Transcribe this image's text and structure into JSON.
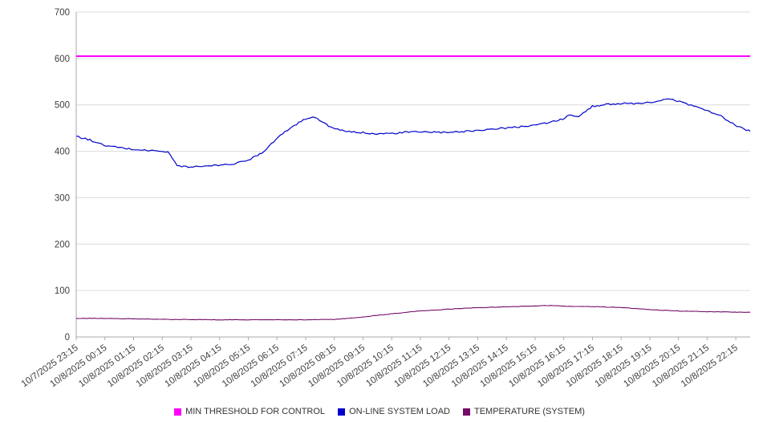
{
  "chart_data": {
    "type": "line",
    "title": "",
    "xlabel": "",
    "ylabel": "",
    "ylim": [
      0,
      700
    ],
    "ytick_interval": 100,
    "grid": "horizontal",
    "legend_position": "bottom",
    "x_span_hours": 23.5,
    "x_tick_labels": [
      "10/7/2025 23:15",
      "10/8/2025 00:15",
      "10/8/2025 01:15",
      "10/8/2025 02:15",
      "10/8/2025 03:15",
      "10/8/2025 04:15",
      "10/8/2025 05:15",
      "10/8/2025 06:15",
      "10/8/2025 07:15",
      "10/8/2025 08:15",
      "10/8/2025 09:15",
      "10/8/2025 10:15",
      "10/8/2025 11:15",
      "10/8/2025 12:15",
      "10/8/2025 13:15",
      "10/8/2025 14:15",
      "10/8/2025 15:15",
      "10/8/2025 16:15",
      "10/8/2025 17:15",
      "10/8/2025 18:15",
      "10/8/2025 19:15",
      "10/8/2025 20:15",
      "10/8/2025 21:15",
      "10/8/2025 22:15"
    ],
    "series": [
      {
        "name": "MIN THRESHOLD FOR CONTROL",
        "color": "#ff00ff",
        "width": 2,
        "jitter": 0,
        "x": [
          0,
          23.5
        ],
        "values": [
          605,
          605
        ]
      },
      {
        "name": "ON-LINE SYSTEM LOAD",
        "color": "#0000cc",
        "width": 1.2,
        "jitter": 1.8,
        "x": [
          0,
          0.5,
          1,
          1.5,
          2,
          2.5,
          3,
          3.25,
          3.5,
          4,
          4.5,
          5,
          5.5,
          6,
          6.5,
          7,
          7.5,
          8,
          8.25,
          8.5,
          9,
          9.5,
          10,
          10.5,
          11,
          11.5,
          12,
          12.5,
          13,
          13.5,
          14,
          14.5,
          15,
          15.5,
          16,
          16.5,
          17,
          17.25,
          17.5,
          18,
          18.5,
          19,
          19.5,
          20,
          20.5,
          20.75,
          21,
          21.5,
          22,
          22.5,
          23,
          23.5
        ],
        "values": [
          432,
          424,
          412,
          408,
          404,
          402,
          400,
          397,
          369,
          366,
          368,
          370,
          373,
          381,
          398,
          428,
          452,
          470,
          475,
          466,
          448,
          442,
          440,
          438,
          438,
          441,
          442,
          441,
          440,
          443,
          445,
          448,
          450,
          453,
          457,
          462,
          470,
          480,
          473,
          497,
          501,
          503,
          502,
          505,
          511,
          512,
          508,
          498,
          488,
          475,
          455,
          443
        ]
      },
      {
        "name": "TEMPERATURE (SYSTEM)",
        "color": "#740b68",
        "width": 1.1,
        "jitter": 0.5,
        "x": [
          0,
          1,
          2,
          3,
          4,
          5,
          6,
          7,
          8,
          9,
          9.5,
          10,
          10.5,
          11,
          11.5,
          12,
          12.5,
          13,
          13.5,
          14,
          15,
          15.5,
          16,
          16.5,
          17,
          18,
          19,
          20,
          21,
          22,
          23,
          23.5
        ],
        "values": [
          40,
          40,
          39,
          38,
          37.5,
          37,
          37,
          37,
          37,
          38,
          40,
          43,
          46.5,
          50,
          53,
          56,
          58,
          60,
          61.5,
          63,
          65,
          66,
          66.5,
          68,
          66,
          65.5,
          63.5,
          59,
          56,
          54.5,
          53.5,
          53
        ]
      }
    ]
  }
}
